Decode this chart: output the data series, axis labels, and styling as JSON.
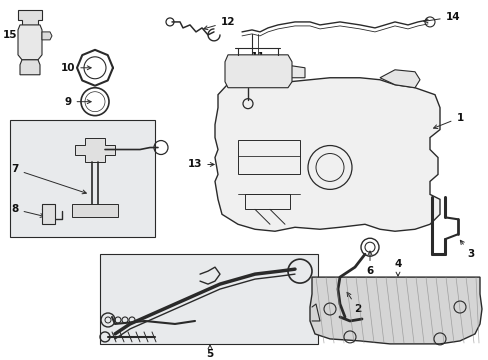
{
  "bg_color": "#ffffff",
  "fig_width": 4.89,
  "fig_height": 3.6,
  "dpi": 100,
  "lc": "#2a2a2a",
  "lc2": "#444444",
  "fill_light": "#f0f0f0",
  "fill_box": "#e8e8e8",
  "fill_tank": "#f2f2f2",
  "fill_skid": "#c8c8c8",
  "fs": 7.5,
  "fw": "bold"
}
